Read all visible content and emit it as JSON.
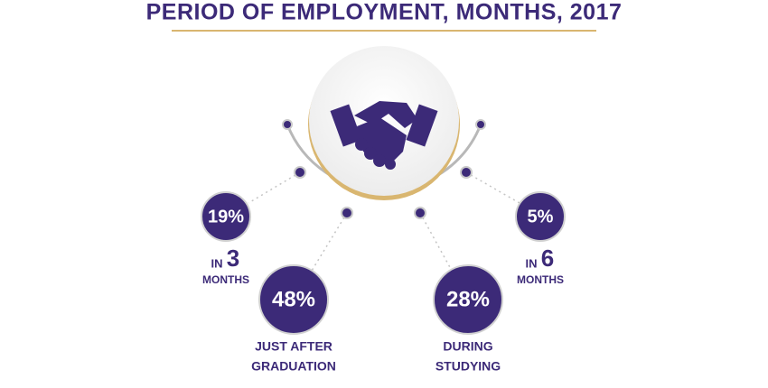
{
  "title": "PERIOD OF EMPLOYMENT, MONTHS, 2017",
  "items": [
    {
      "percent": "19%",
      "prefix": "IN",
      "number": "3",
      "suffix": "MONTHS"
    },
    {
      "percent": "48%",
      "lines": [
        "JUST AFTER",
        "GRADUATION"
      ]
    },
    {
      "percent": "28%",
      "lines": [
        "DURING",
        "STUDYING"
      ]
    },
    {
      "percent": "5%",
      "prefix": "IN",
      "number": "6",
      "suffix": "MONTHS"
    }
  ]
}
